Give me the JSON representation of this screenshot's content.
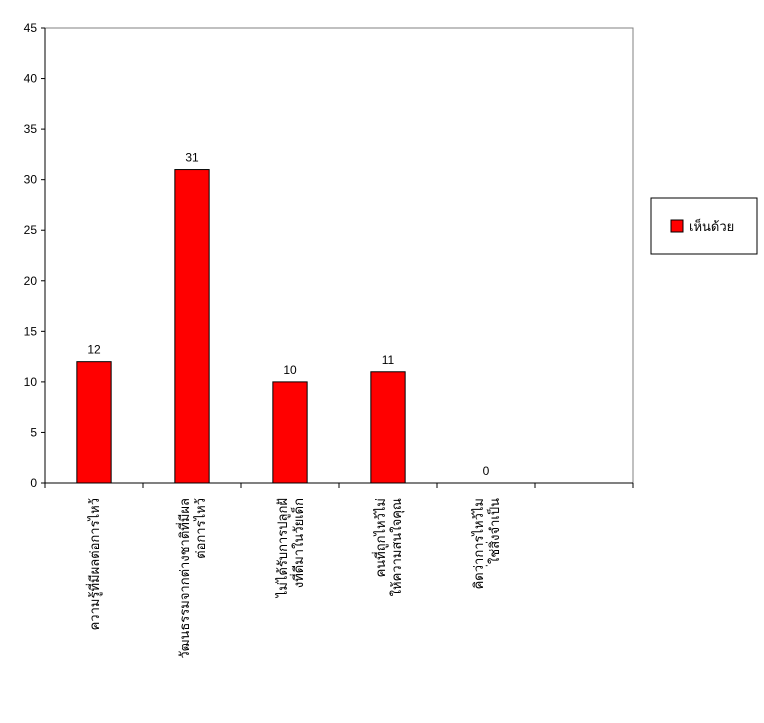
{
  "chart_data": {
    "type": "bar",
    "categories": [
      "ความรู้ที่มีผลต่อการไหว้",
      "วัฒนธรรมจากต่างชาติที่มีผลต่อการไหว้",
      "ไม่ได้รับการปลูกฝังที่ดีมาในวัยเด็ก",
      "คนที่ถูกไหว้ไม่ให้ความสนใจคุณ",
      "คิดว่าการไหว้ไม่ใช่สิ่งจำเป็น"
    ],
    "series": [
      {
        "name": "เห็นด้วย",
        "values": [
          12,
          31,
          10,
          11,
          0
        ],
        "color": "#ff0000"
      }
    ],
    "yticks": [
      0,
      5,
      10,
      15,
      20,
      25,
      30,
      35,
      40,
      45
    ],
    "ylim": [
      0,
      45
    ],
    "category_slots": 6,
    "data_labels": true,
    "grid": false,
    "legend": "right",
    "plot_background": "#ffffff",
    "bar_color": "#ff0000"
  }
}
